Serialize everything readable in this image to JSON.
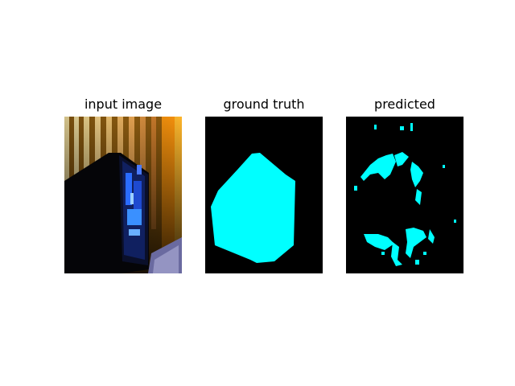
{
  "panels": [
    {
      "title": "input image",
      "kind": "photo"
    },
    {
      "title": "ground truth",
      "kind": "mask"
    },
    {
      "title": "predicted",
      "kind": "mask"
    }
  ],
  "colors": {
    "background": "#ffffff",
    "mask_background": "#000000",
    "mask_foreground": "#00ffff"
  }
}
